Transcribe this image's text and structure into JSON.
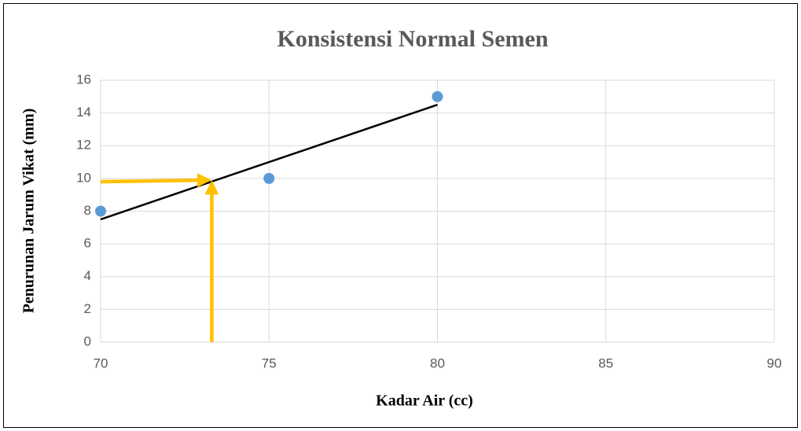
{
  "chart_data": {
    "type": "scatter",
    "title": "Konsistensi Normal Semen",
    "x_label": "Kadar Air (cc)",
    "y_label": "Penurunan Jarum Vikat (mm)",
    "x": [
      70,
      75,
      80
    ],
    "values": [
      8,
      10,
      15
    ],
    "color": "#5b9bd5",
    "trendline": {
      "x": [
        70,
        80
      ],
      "y": [
        7.5,
        14.5
      ],
      "color": "#000000"
    },
    "guide": {
      "x": 73.3,
      "y": 9.9,
      "color": "#ffc000"
    },
    "xlim": [
      70,
      90
    ],
    "xticks": [
      70,
      75,
      80,
      85,
      90
    ],
    "ylim": [
      0,
      16
    ],
    "yticks": [
      0,
      2,
      4,
      6,
      8,
      10,
      12,
      14,
      16
    ],
    "grid": true
  }
}
